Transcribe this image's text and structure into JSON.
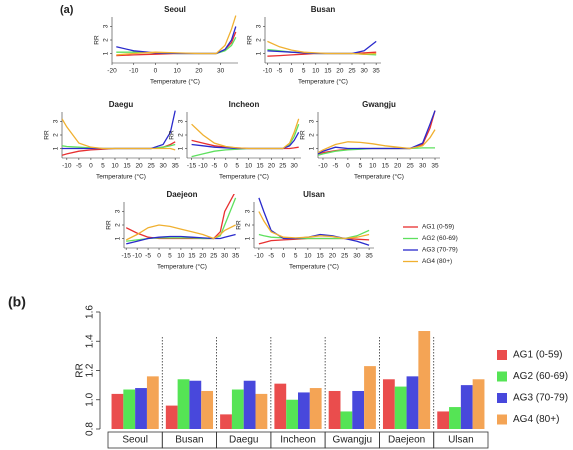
{
  "panel_labels": [
    "(a)",
    "(b)"
  ],
  "legend_a": [
    {
      "name": "AG1 (0-59)",
      "color": "#e83030"
    },
    {
      "name": "AG2 (60-69)",
      "color": "#5ee05e"
    },
    {
      "name": "AG3 (70-79)",
      "color": "#2a2acc"
    },
    {
      "name": "AG4 (80+)",
      "color": "#f0b030"
    }
  ],
  "chart_data": [
    {
      "type": "line",
      "title": "Seoul",
      "xlabel": "Temperature (°C)",
      "ylabel": "RR",
      "xlim": [
        -20,
        38
      ],
      "xticks": [
        -20,
        -10,
        0,
        10,
        20,
        30
      ],
      "ylim": [
        0.3,
        3.7
      ],
      "yticks": [
        1,
        2,
        3
      ],
      "x": [
        -18,
        -10,
        0,
        10,
        20,
        28,
        32,
        35,
        37
      ],
      "series": [
        {
          "color": "#e83030",
          "values": [
            0.85,
            0.9,
            0.95,
            1.0,
            1.0,
            1.0,
            1.3,
            1.8,
            2.6
          ]
        },
        {
          "color": "#5ee05e",
          "values": [
            1.1,
            1.1,
            1.05,
            1.0,
            1.0,
            1.0,
            1.2,
            1.6,
            2.2
          ]
        },
        {
          "color": "#2a2acc",
          "values": [
            1.5,
            1.2,
            1.05,
            1.0,
            1.0,
            1.0,
            1.3,
            2.0,
            3.0
          ]
        },
        {
          "color": "#f0b030",
          "values": [
            0.9,
            1.0,
            1.1,
            1.05,
            1.0,
            1.0,
            1.6,
            2.8,
            3.8
          ]
        }
      ]
    },
    {
      "type": "line",
      "title": "Busan",
      "xlabel": "Temperature (°C)",
      "ylabel": "RR",
      "xlim": [
        -11,
        37
      ],
      "xticks": [
        -10,
        -5,
        0,
        5,
        10,
        15,
        20,
        25,
        30,
        35
      ],
      "ylim": [
        0.3,
        3.7
      ],
      "yticks": [
        1,
        2,
        3
      ],
      "x": [
        -10,
        -5,
        0,
        5,
        10,
        15,
        20,
        25,
        30,
        35
      ],
      "series": [
        {
          "color": "#e83030",
          "values": [
            0.8,
            0.85,
            0.9,
            0.95,
            1.0,
            1.0,
            1.0,
            1.0,
            1.05,
            1.1
          ]
        },
        {
          "color": "#5ee05e",
          "values": [
            1.3,
            1.2,
            1.1,
            1.05,
            1.0,
            1.0,
            1.0,
            1.0,
            0.95,
            0.9
          ]
        },
        {
          "color": "#2a2acc",
          "values": [
            1.2,
            1.15,
            1.1,
            1.05,
            1.0,
            1.0,
            1.0,
            1.0,
            1.2,
            1.9
          ]
        },
        {
          "color": "#f0b030",
          "values": [
            1.9,
            1.5,
            1.25,
            1.1,
            1.05,
            1.0,
            1.0,
            1.0,
            0.95,
            1.0
          ]
        }
      ]
    },
    {
      "type": "line",
      "title": "Daegu",
      "xlabel": "Temperature (°C)",
      "ylabel": "RR",
      "xlim": [
        -12,
        37
      ],
      "xticks": [
        -10,
        -5,
        0,
        5,
        10,
        15,
        20,
        25,
        30,
        35
      ],
      "ylim": [
        0.3,
        3.7
      ],
      "yticks": [
        1,
        2,
        3
      ],
      "x": [
        -12,
        -10,
        -5,
        0,
        5,
        10,
        15,
        20,
        25,
        30,
        33,
        35
      ],
      "series": [
        {
          "color": "#e83030",
          "values": [
            0.5,
            0.6,
            0.8,
            0.9,
            0.95,
            1.0,
            1.0,
            1.0,
            1.0,
            1.1,
            1.3,
            1.5
          ]
        },
        {
          "color": "#5ee05e",
          "values": [
            1.2,
            1.15,
            1.1,
            1.05,
            1.0,
            1.0,
            1.0,
            1.0,
            1.0,
            1.1,
            1.2,
            1.3
          ]
        },
        {
          "color": "#2a2acc",
          "values": [
            1.0,
            1.0,
            1.0,
            1.0,
            1.0,
            1.0,
            1.0,
            1.0,
            1.0,
            1.3,
            2.2,
            3.8
          ]
        },
        {
          "color": "#f0b030",
          "values": [
            3.2,
            2.6,
            1.4,
            1.1,
            1.0,
            1.0,
            1.0,
            1.0,
            1.0,
            1.0,
            1.0,
            0.9
          ]
        }
      ]
    },
    {
      "type": "line",
      "title": "Incheon",
      "xlabel": "Temperature (°C)",
      "ylabel": "RR",
      "xlim": [
        -17,
        33
      ],
      "xticks": [
        -15,
        -10,
        -5,
        0,
        5,
        10,
        15,
        20,
        25,
        30
      ],
      "ylim": [
        0.3,
        3.7
      ],
      "yticks": [
        1,
        2,
        3
      ],
      "x": [
        -15,
        -10,
        -5,
        0,
        5,
        10,
        15,
        20,
        25,
        28,
        30,
        32
      ],
      "series": [
        {
          "color": "#e83030",
          "values": [
            1.6,
            1.4,
            1.2,
            1.1,
            1.05,
            1.0,
            1.0,
            1.0,
            1.0,
            1.0,
            1.05,
            1.1
          ]
        },
        {
          "color": "#5ee05e",
          "values": [
            0.4,
            0.6,
            0.8,
            0.9,
            0.95,
            1.0,
            1.0,
            1.0,
            1.0,
            1.3,
            1.9,
            2.8
          ]
        },
        {
          "color": "#2a2acc",
          "values": [
            1.3,
            1.2,
            1.1,
            1.05,
            1.0,
            1.0,
            1.0,
            1.0,
            1.0,
            1.2,
            1.6,
            2.2
          ]
        },
        {
          "color": "#f0b030",
          "values": [
            2.8,
            2.0,
            1.4,
            1.15,
            1.05,
            1.0,
            1.0,
            1.0,
            1.0,
            1.4,
            2.2,
            3.2
          ]
        }
      ]
    },
    {
      "type": "line",
      "title": "Gwangju",
      "xlabel": "Temperature (°C)",
      "ylabel": "RR",
      "xlim": [
        -12,
        37
      ],
      "xticks": [
        -10,
        -5,
        0,
        5,
        10,
        15,
        20,
        25,
        30,
        35
      ],
      "ylim": [
        0.3,
        3.7
      ],
      "yticks": [
        1,
        2,
        3
      ],
      "x": [
        -12,
        -10,
        -5,
        0,
        5,
        10,
        15,
        20,
        25,
        30,
        33,
        35
      ],
      "series": [
        {
          "color": "#e83030",
          "values": [
            0.6,
            0.7,
            0.85,
            0.95,
            1.0,
            1.0,
            1.0,
            1.0,
            1.0,
            1.3,
            2.5,
            3.8
          ]
        },
        {
          "color": "#5ee05e",
          "values": [
            0.5,
            0.6,
            0.8,
            0.9,
            0.95,
            1.0,
            1.0,
            1.0,
            1.0,
            1.05,
            1.05,
            1.05
          ]
        },
        {
          "color": "#2a2acc",
          "values": [
            0.6,
            0.8,
            1.1,
            1.0,
            1.0,
            1.0,
            1.0,
            1.0,
            1.0,
            1.4,
            2.8,
            3.8
          ]
        },
        {
          "color": "#f0b030",
          "values": [
            0.7,
            0.9,
            1.3,
            1.5,
            1.45,
            1.35,
            1.2,
            1.1,
            1.0,
            1.2,
            1.8,
            2.4
          ]
        }
      ]
    },
    {
      "type": "line",
      "title": "Daejeon",
      "xlabel": "Temperature (°C)",
      "ylabel": "RR",
      "xlim": [
        -16,
        37
      ],
      "xticks": [
        -15,
        -10,
        -5,
        0,
        5,
        10,
        15,
        20,
        25,
        30,
        35
      ],
      "ylim": [
        0.3,
        3.7
      ],
      "yticks": [
        1,
        2,
        3
      ],
      "x": [
        -15,
        -10,
        -5,
        0,
        5,
        10,
        15,
        20,
        25,
        28,
        30,
        35
      ],
      "series": [
        {
          "color": "#e83030",
          "values": [
            1.8,
            1.4,
            1.1,
            1.0,
            1.0,
            1.0,
            1.0,
            1.0,
            1.0,
            1.5,
            3.0,
            4.5
          ]
        },
        {
          "color": "#5ee05e",
          "values": [
            0.8,
            0.9,
            1.0,
            1.05,
            1.05,
            1.05,
            1.05,
            1.0,
            1.0,
            1.2,
            2.0,
            4.0
          ]
        },
        {
          "color": "#2a2acc",
          "values": [
            0.6,
            0.8,
            1.0,
            1.1,
            1.15,
            1.15,
            1.1,
            1.05,
            1.0,
            1.0,
            1.1,
            1.3
          ]
        },
        {
          "color": "#f0b030",
          "values": [
            0.9,
            1.3,
            1.8,
            2.0,
            1.9,
            1.7,
            1.5,
            1.3,
            1.0,
            1.3,
            1.6,
            2.0
          ]
        }
      ]
    },
    {
      "type": "line",
      "title": "Ulsan",
      "xlabel": "Temperature (°C)",
      "ylabel": "RR",
      "xlim": [
        -12,
        37
      ],
      "xticks": [
        -10,
        -5,
        0,
        5,
        10,
        15,
        20,
        25,
        30,
        35
      ],
      "ylim": [
        0.3,
        3.7
      ],
      "yticks": [
        1,
        2,
        3
      ],
      "x": [
        -10,
        -8,
        -5,
        0,
        5,
        10,
        15,
        20,
        25,
        30,
        35
      ],
      "series": [
        {
          "color": "#e83030",
          "values": [
            0.6,
            0.7,
            0.85,
            0.9,
            0.95,
            1.0,
            1.0,
            1.0,
            1.0,
            0.95,
            0.9
          ]
        },
        {
          "color": "#5ee05e",
          "values": [
            1.3,
            1.2,
            1.1,
            1.05,
            1.0,
            1.0,
            1.0,
            1.0,
            1.0,
            1.2,
            1.6
          ]
        },
        {
          "color": "#2a2acc",
          "values": [
            4.0,
            3.0,
            1.6,
            1.0,
            1.0,
            1.1,
            1.3,
            1.2,
            1.0,
            0.8,
            0.5
          ]
        },
        {
          "color": "#f0b030",
          "values": [
            3.0,
            2.3,
            1.5,
            1.1,
            1.05,
            1.1,
            1.2,
            1.15,
            1.0,
            1.1,
            1.3
          ]
        }
      ]
    },
    {
      "type": "bar",
      "ylabel": "RR",
      "ylim": [
        0.8,
        1.6
      ],
      "yticks": [
        0.8,
        {
          "value": 1.0,
          "label": "1.0"
        },
        1.2,
        1.4,
        1.6
      ],
      "categories": [
        "Seoul",
        "Busan",
        "Daegu",
        "Incheon",
        "Gwangju",
        "Daejeon",
        "Ulsan"
      ],
      "series": [
        {
          "name": "AG1 (0-59)",
          "color": "#ea4d4d",
          "values": [
            1.04,
            0.96,
            0.9,
            1.11,
            1.06,
            1.14,
            0.92
          ]
        },
        {
          "name": "AG2 (60-69)",
          "color": "#55e455",
          "values": [
            1.07,
            1.14,
            1.07,
            1.0,
            0.92,
            1.09,
            0.95
          ]
        },
        {
          "name": "AG3 (70-79)",
          "color": "#4848dc",
          "values": [
            1.08,
            1.13,
            1.13,
            1.05,
            1.06,
            1.16,
            1.1
          ]
        },
        {
          "name": "AG4 (80+)",
          "color": "#f4a455",
          "values": [
            1.16,
            1.06,
            1.04,
            1.08,
            1.23,
            1.47,
            1.14
          ]
        }
      ]
    }
  ]
}
